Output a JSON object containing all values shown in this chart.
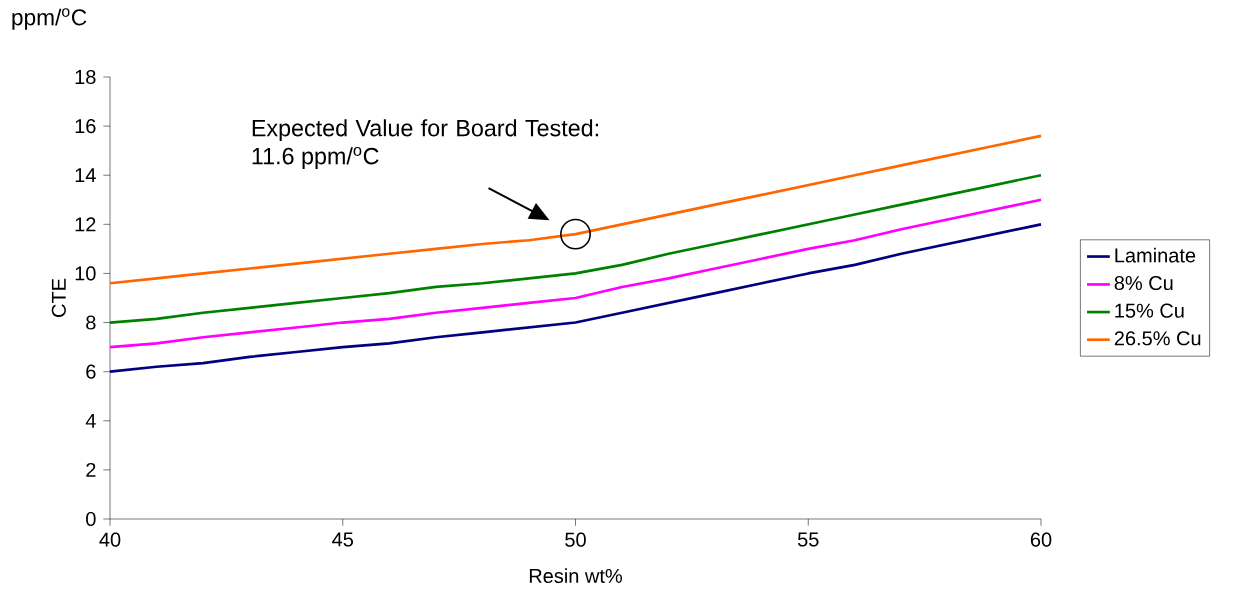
{
  "chart_data": {
    "type": "line",
    "xlabel": "Resin wt%",
    "ylabel": "CTE",
    "x": [
      40,
      41,
      42,
      43,
      44,
      45,
      46,
      47,
      48,
      49,
      50,
      51,
      52,
      53,
      54,
      55,
      56,
      57,
      58,
      59,
      60
    ],
    "series": [
      {
        "name": "Laminate",
        "color": "#000080",
        "values": [
          6.0,
          6.2,
          6.35,
          6.6,
          6.8,
          7.0,
          7.15,
          7.4,
          7.6,
          7.8,
          8.0,
          8.4,
          8.8,
          9.2,
          9.6,
          10.0,
          10.35,
          10.8,
          11.2,
          11.6,
          12.0
        ]
      },
      {
        "name": "8% Cu",
        "color": "#ff00ff",
        "values": [
          7.0,
          7.15,
          7.4,
          7.6,
          7.8,
          8.0,
          8.15,
          8.4,
          8.6,
          8.8,
          9.0,
          9.45,
          9.8,
          10.2,
          10.6,
          11.0,
          11.35,
          11.8,
          12.2,
          12.6,
          13.0
        ]
      },
      {
        "name": "15% Cu",
        "color": "#008000",
        "values": [
          8.0,
          8.15,
          8.4,
          8.6,
          8.8,
          9.0,
          9.2,
          9.45,
          9.6,
          9.8,
          10.0,
          10.35,
          10.8,
          11.2,
          11.6,
          12.0,
          12.4,
          12.8,
          13.2,
          13.6,
          14.0
        ]
      },
      {
        "name": "26.5% Cu",
        "color": "#ff6600",
        "values": [
          9.6,
          9.8,
          10.0,
          10.2,
          10.4,
          10.6,
          10.8,
          11.0,
          11.2,
          11.35,
          11.6,
          12.0,
          12.4,
          12.8,
          13.2,
          13.6,
          14.0,
          14.4,
          14.8,
          15.2,
          15.6
        ]
      }
    ],
    "xlim": [
      40,
      60
    ],
    "xticks": [
      40,
      45,
      50,
      55,
      60
    ],
    "ylim": [
      0,
      18
    ],
    "yticks": [
      0,
      2,
      4,
      6,
      8,
      10,
      12,
      14,
      16,
      18
    ],
    "grid": false,
    "legend": "right",
    "line_style": "solid",
    "annotations": [
      "ppm/$^{o}$C",
      {
        "text": "Expected Value for Board Tested: 11.6 ppm/$^{o}$C",
        "x": 50,
        "y": 11.6
      }
    ]
  }
}
